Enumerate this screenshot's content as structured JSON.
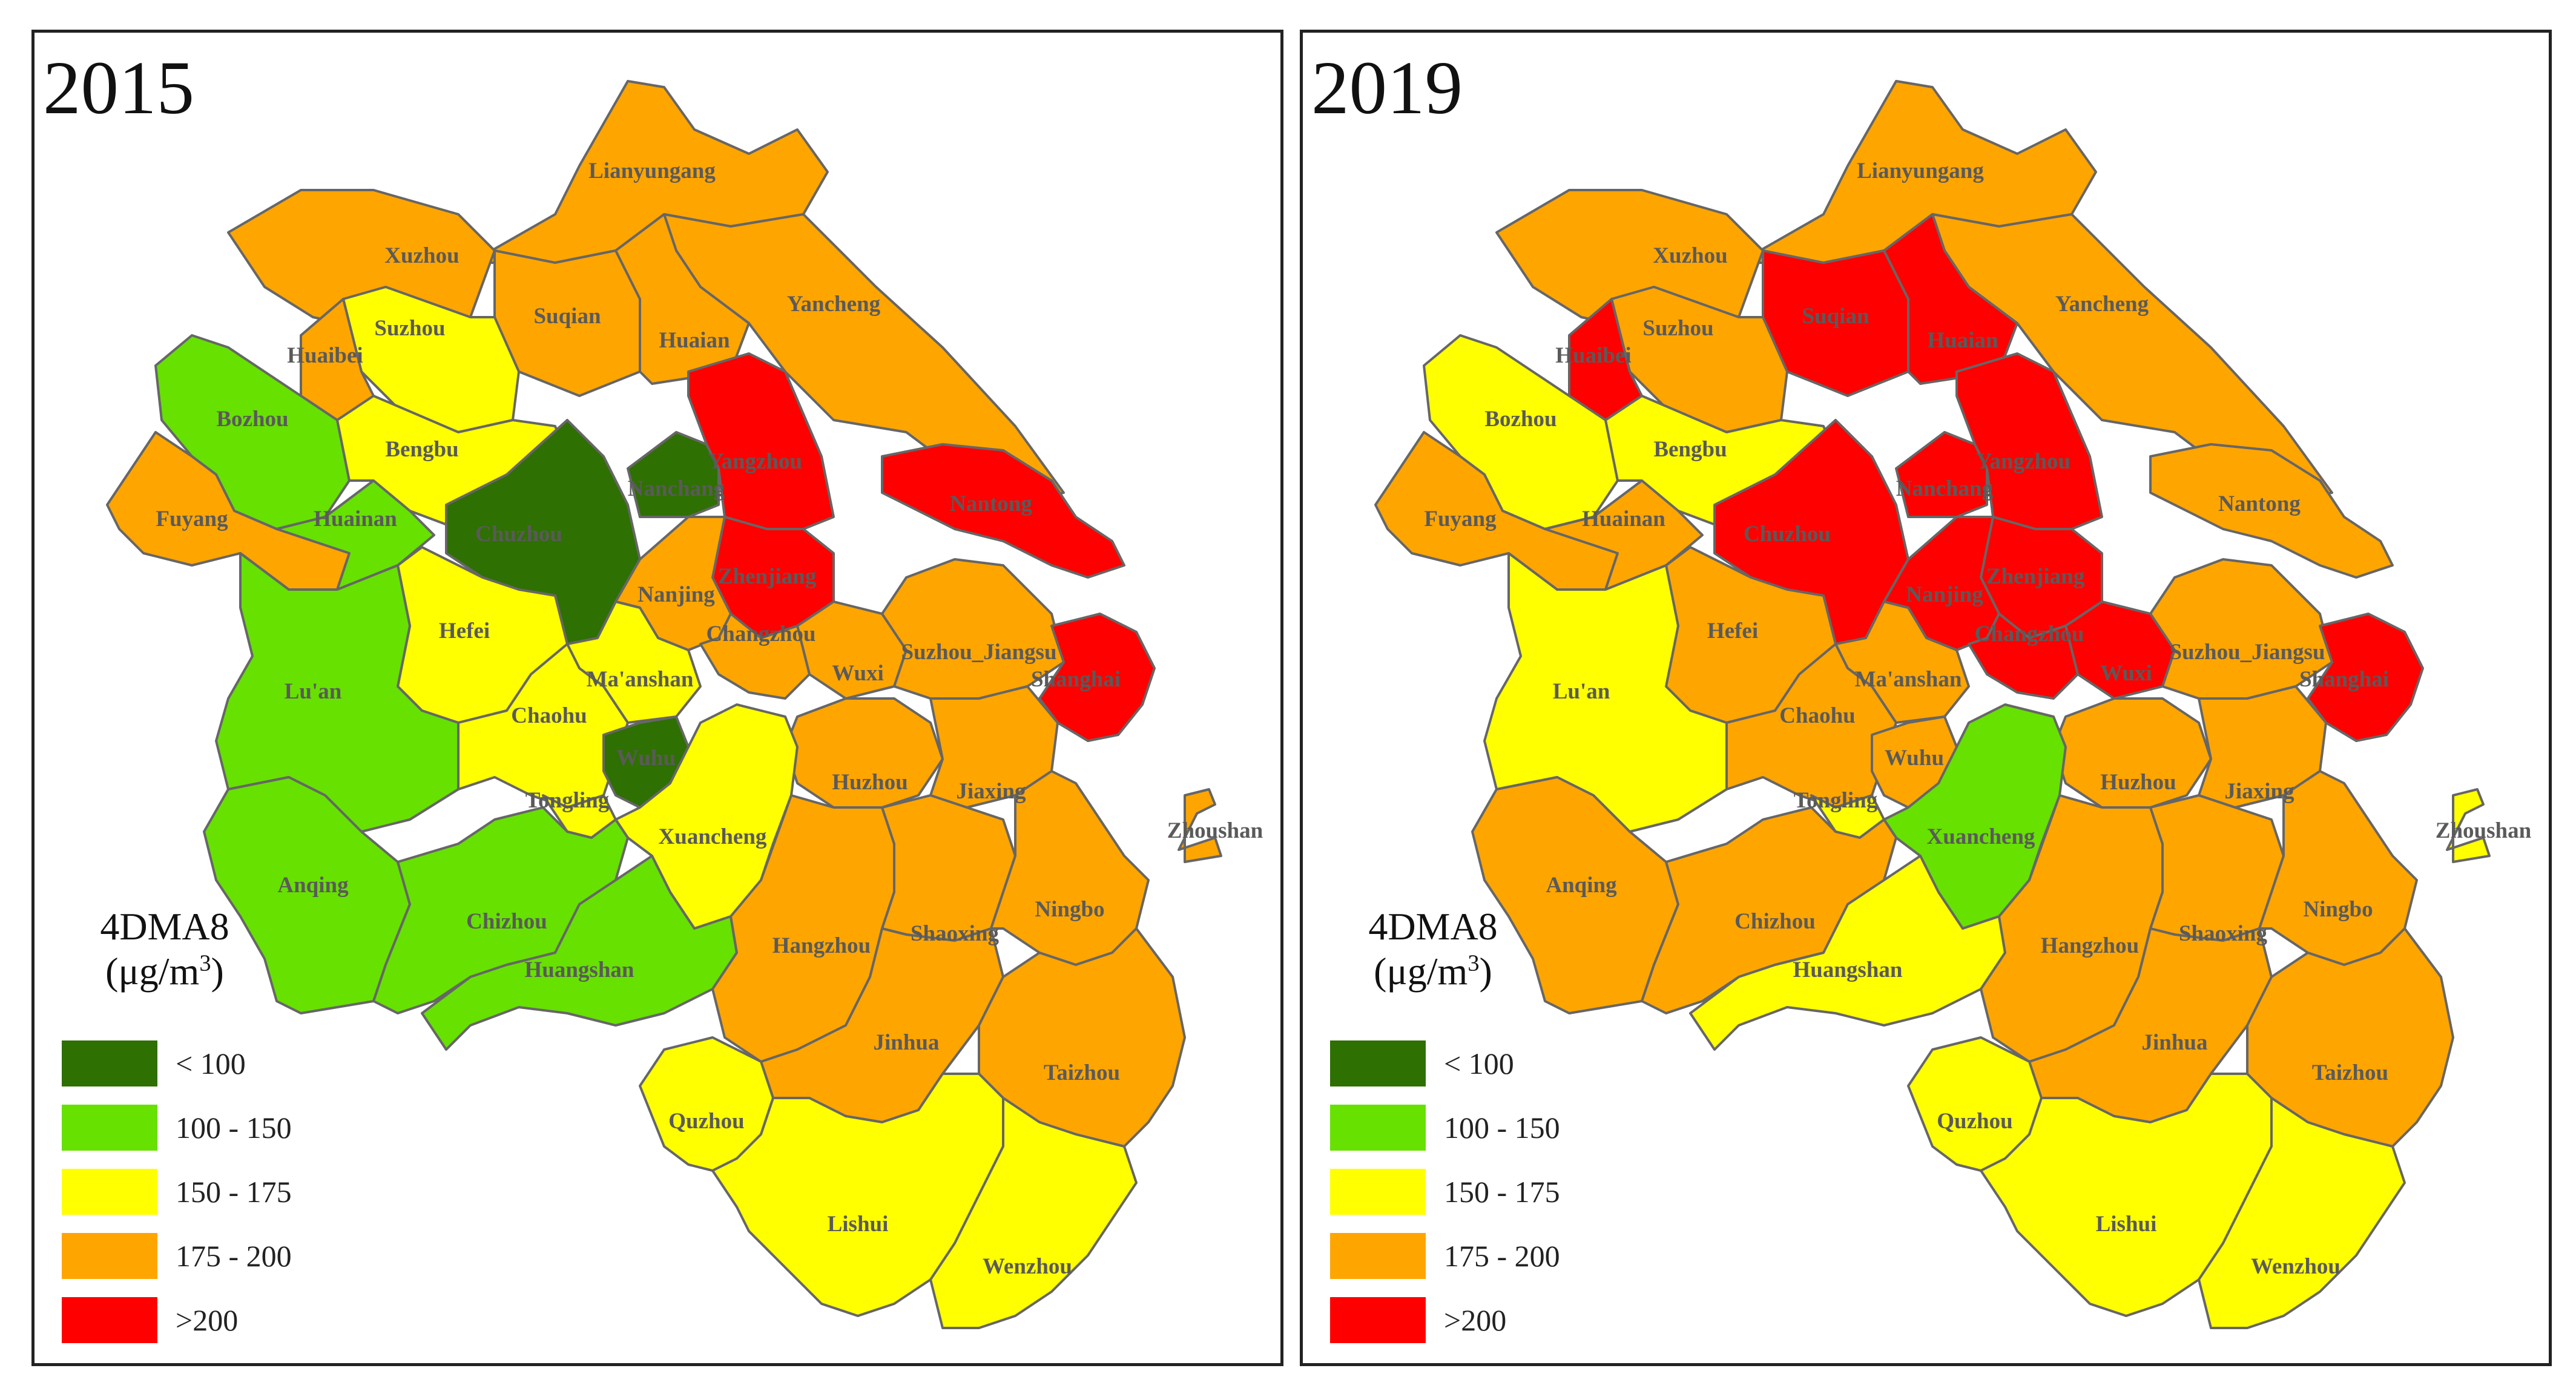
{
  "indicator": "4DMA8",
  "unit_html": "(μg/m³)",
  "legend": [
    {
      "label": "< 100",
      "color": "#2e7002"
    },
    {
      "label": "100 - 150",
      "color": "#66e100"
    },
    {
      "label": "150 - 175",
      "color": "#ffff00"
    },
    {
      "label": "175 - 200",
      "color": "#ffa500"
    },
    {
      "label": ">200",
      "color": "#ff0000"
    }
  ],
  "panels": [
    {
      "year": "2015",
      "classes": {
        "Lianyungang": "175 - 200",
        "Xuzhou": "175 - 200",
        "Suqian": "175 - 200",
        "Yancheng": "175 - 200",
        "Huaian": "175 - 200",
        "Suzhou": "150 - 175",
        "Huaibei": "175 - 200",
        "Bozhou": "100 - 150",
        "Bengbu": "150 - 175",
        "Fuyang": "175 - 200",
        "Huainan": "100 - 150",
        "Chuzhou": "< 100",
        "Nanchang": "< 100",
        "Yangzhou": ">200",
        "Zhenjiang": ">200",
        "Nantong": ">200",
        "Nanjing": "175 - 200",
        "Hefei": "150 - 175",
        "Changzhou": "175 - 200",
        "Lu'an": "100 - 150",
        "Ma'anshan": "150 - 175",
        "Wuxi": "175 - 200",
        "Suzhou_Jiangsu": "175 - 200",
        "Shanghai": ">200",
        "Chaohu": "150 - 175",
        "Wuhu": "< 100",
        "Tongling": "150 - 175",
        "Huzhou": "175 - 200",
        "Jiaxing": "175 - 200",
        "Xuancheng": "150 - 175",
        "Zhoushan": "175 - 200",
        "Anqing": "100 - 150",
        "Chizhou": "100 - 150",
        "Huangshan": "100 - 150",
        "Hangzhou": "175 - 200",
        "Shaoxing": "175 - 200",
        "Ningbo": "175 - 200",
        "Jinhua": "175 - 200",
        "Taizhou": "175 - 200",
        "Quzhou": "150 - 175",
        "Lishui": "150 - 175",
        "Wenzhou": "150 - 175"
      }
    },
    {
      "year": "2019",
      "classes": {
        "Lianyungang": "175 - 200",
        "Xuzhou": "175 - 200",
        "Suqian": ">200",
        "Yancheng": "175 - 200",
        "Huaian": ">200",
        "Suzhou": "175 - 200",
        "Huaibei": ">200",
        "Bozhou": "150 - 175",
        "Bengbu": "150 - 175",
        "Fuyang": "175 - 200",
        "Huainan": "175 - 200",
        "Chuzhou": ">200",
        "Nanchang": ">200",
        "Yangzhou": ">200",
        "Zhenjiang": ">200",
        "Nantong": "175 - 200",
        "Nanjing": ">200",
        "Hefei": "175 - 200",
        "Changzhou": ">200",
        "Lu'an": "150 - 175",
        "Ma'anshan": "175 - 200",
        "Wuxi": ">200",
        "Suzhou_Jiangsu": "175 - 200",
        "Shanghai": ">200",
        "Chaohu": "175 - 200",
        "Wuhu": "175 - 200",
        "Tongling": "150 - 175",
        "Huzhou": "175 - 200",
        "Jiaxing": "175 - 200",
        "Xuancheng": "100 - 150",
        "Zhoushan": "150 - 175",
        "Anqing": "175 - 200",
        "Chizhou": "175 - 200",
        "Huangshan": "150 - 175",
        "Hangzhou": "175 - 200",
        "Shaoxing": "175 - 200",
        "Ningbo": "175 - 200",
        "Jinhua": "175 - 200",
        "Taizhou": "175 - 200",
        "Quzhou": "150 - 175",
        "Lishui": "150 - 175",
        "Wenzhou": "150 - 175"
      }
    }
  ]
}
